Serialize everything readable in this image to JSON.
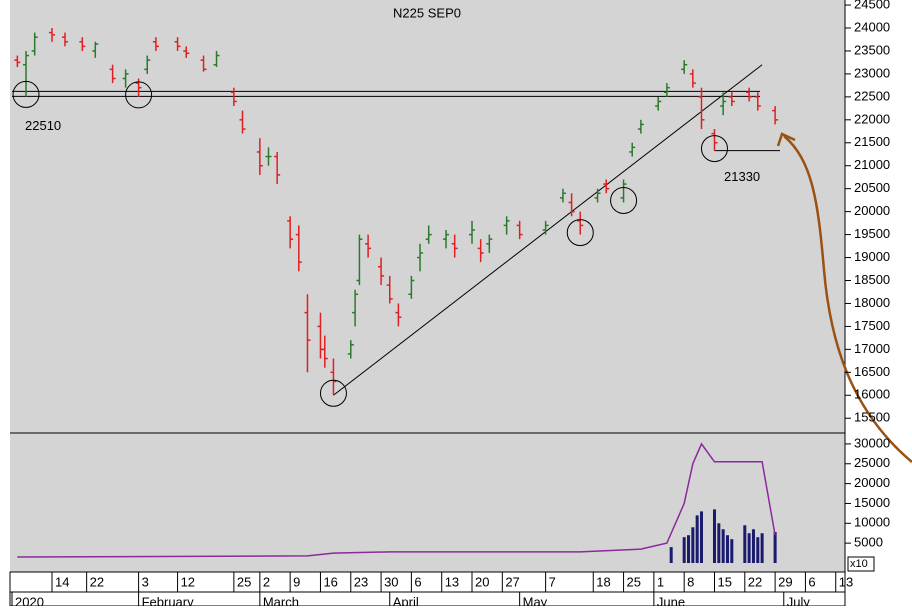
{
  "chart_data": [
    {
      "type": "ohlc",
      "title": "N225 SEP0",
      "x": [
        "2020-01-06",
        "2020-01-08",
        "2020-01-10",
        "2020-01-14",
        "2020-01-17",
        "2020-01-21",
        "2020-01-24",
        "2020-01-28",
        "2020-01-31",
        "2020-02-03",
        "2020-02-05",
        "2020-02-07",
        "2020-02-12",
        "2020-02-14",
        "2020-02-18",
        "2020-02-21",
        "2020-02-25",
        "2020-02-27",
        "2020-03-02",
        "2020-03-04",
        "2020-03-06",
        "2020-03-09",
        "2020-03-11",
        "2020-03-13",
        "2020-03-16",
        "2020-03-17",
        "2020-03-19",
        "2020-03-23",
        "2020-03-24",
        "2020-03-25",
        "2020-03-27",
        "2020-03-30",
        "2020-04-01",
        "2020-04-03",
        "2020-04-06",
        "2020-04-08",
        "2020-04-10",
        "2020-04-14",
        "2020-04-16",
        "2020-04-20",
        "2020-04-22",
        "2020-04-24",
        "2020-04-28",
        "2020-05-01",
        "2020-05-07",
        "2020-05-11",
        "2020-05-13",
        "2020-05-15",
        "2020-05-19",
        "2020-05-21",
        "2020-05-25",
        "2020-05-27",
        "2020-05-29",
        "2020-06-02",
        "2020-06-04",
        "2020-06-08",
        "2020-06-10",
        "2020-06-12",
        "2020-06-15",
        "2020-06-17",
        "2020-06-19",
        "2020-06-23",
        "2020-06-25",
        "2020-06-29"
      ],
      "open": [
        23300,
        23200,
        23500,
        23900,
        23800,
        23700,
        23500,
        23100,
        22900,
        22800,
        23100,
        23700,
        23700,
        23500,
        23300,
        23200,
        22600,
        22000,
        21300,
        21200,
        21200,
        19800,
        19500,
        17800,
        17500,
        17000,
        16500,
        16900,
        17800,
        18500,
        19300,
        18800,
        18400,
        17800,
        18200,
        19000,
        19400,
        19400,
        19300,
        19500,
        19200,
        19300,
        19700,
        19700,
        19600,
        20300,
        20200,
        19800,
        20300,
        20600,
        20300,
        21300,
        21800,
        22300,
        22600,
        23100,
        23000,
        22500,
        21700,
        22300,
        22500,
        22600,
        22500,
        22200
      ],
      "high": [
        23400,
        23500,
        23900,
        24000,
        23900,
        23800,
        23700,
        23200,
        23100,
        22900,
        23400,
        23800,
        23800,
        23600,
        23400,
        23500,
        22700,
        22200,
        21600,
        21400,
        21300,
        19900,
        19700,
        18200,
        17800,
        17300,
        16800,
        17200,
        18300,
        19500,
        19500,
        19000,
        18600,
        18000,
        18600,
        19300,
        19700,
        19600,
        19500,
        19800,
        19400,
        19500,
        19900,
        19800,
        19800,
        20500,
        20400,
        20000,
        20500,
        20700,
        20700,
        21500,
        22000,
        22500,
        22800,
        23300,
        23100,
        22700,
        21800,
        22600,
        22600,
        22700,
        22600,
        22300
      ],
      "low": [
        23150,
        22510,
        23400,
        23700,
        23600,
        23500,
        23350,
        22800,
        22700,
        22500,
        23000,
        23500,
        23500,
        23350,
        23050,
        23150,
        22300,
        21700,
        20800,
        21000,
        20600,
        19200,
        18700,
        16500,
        16800,
        16600,
        16000,
        16800,
        17500,
        18400,
        19000,
        18400,
        18000,
        17500,
        18100,
        18700,
        19300,
        19200,
        19000,
        19300,
        18900,
        19100,
        19500,
        19400,
        19500,
        20200,
        19900,
        19500,
        20200,
        20400,
        20200,
        21200,
        21700,
        22200,
        22500,
        23000,
        22700,
        21800,
        21330,
        22100,
        22300,
        22400,
        22200,
        21900
      ],
      "close": [
        23250,
        23400,
        23800,
        23850,
        23700,
        23600,
        23650,
        22900,
        23000,
        22700,
        23300,
        23600,
        23600,
        23450,
        23100,
        23400,
        22400,
        21800,
        21000,
        21200,
        20800,
        19400,
        18900,
        17200,
        17000,
        16800,
        16300,
        17100,
        18200,
        19400,
        19200,
        18600,
        18100,
        17700,
        18500,
        19100,
        19500,
        19500,
        19200,
        19600,
        19100,
        19400,
        19800,
        19500,
        19700,
        20400,
        20000,
        19700,
        20400,
        20500,
        20600,
        21400,
        21900,
        22400,
        22700,
        23200,
        22800,
        22000,
        21500,
        22400,
        22400,
        22500,
        22300,
        22000
      ],
      "up_color": "#2a7a2a",
      "down_color": "#e02020",
      "ylim": [
        15200,
        24610
      ],
      "yticks": [
        15500,
        16000,
        16500,
        17000,
        17500,
        18000,
        18500,
        19000,
        19500,
        20000,
        20500,
        21000,
        21500,
        22000,
        22500,
        23000,
        23500,
        24000,
        24500
      ],
      "levels": [
        22510,
        21330
      ],
      "trendline": {
        "x": [
          "2020-03-19",
          "2020-06-26"
        ],
        "y": [
          16000,
          23200
        ]
      },
      "xticks": [
        {
          "value": "2020-01-14",
          "label": "14"
        },
        {
          "value": "2020-01-22",
          "label": "22"
        },
        {
          "value": "2020-02-03",
          "label": "3"
        },
        {
          "value": "2020-02-12",
          "label": "12"
        },
        {
          "value": "2020-02-25",
          "label": "25"
        },
        {
          "value": "2020-03-02",
          "label": "2"
        },
        {
          "value": "2020-03-09",
          "label": "9"
        },
        {
          "value": "2020-03-16",
          "label": "16"
        },
        {
          "value": "2020-03-23",
          "label": "23"
        },
        {
          "value": "2020-03-30",
          "label": "30"
        },
        {
          "value": "2020-04-06",
          "label": "6"
        },
        {
          "value": "2020-04-13",
          "label": "13"
        },
        {
          "value": "2020-04-20",
          "label": "20"
        },
        {
          "value": "2020-04-27",
          "label": "27"
        },
        {
          "value": "2020-05-07",
          "label": "7"
        },
        {
          "value": "2020-05-18",
          "label": "18"
        },
        {
          "value": "2020-05-25",
          "label": "25"
        },
        {
          "value": "2020-06-01",
          "label": "1"
        },
        {
          "value": "2020-06-08",
          "label": "8"
        },
        {
          "value": "2020-06-15",
          "label": "15"
        },
        {
          "value": "2020-06-22",
          "label": "22"
        },
        {
          "value": "2020-06-29",
          "label": "29"
        },
        {
          "value": "2020-07-06",
          "label": "6"
        },
        {
          "value": "2020-07-13",
          "label": "13"
        }
      ],
      "months": [
        {
          "value": "2020-01-01",
          "label": "2020"
        },
        {
          "value": "2020-02-03",
          "label": "February"
        },
        {
          "value": "2020-03-02",
          "label": "March"
        },
        {
          "value": "2020-04-01",
          "label": "April"
        },
        {
          "value": "2020-05-01",
          "label": "May"
        },
        {
          "value": "2020-06-01",
          "label": "June"
        },
        {
          "value": "2020-07-01",
          "label": "July"
        }
      ]
    },
    {
      "type": "bar",
      "scale_label": "x10",
      "ylim": [
        0,
        33000
      ],
      "yticks": [
        5000,
        10000,
        15000,
        20000,
        25000,
        30000
      ],
      "series": [
        {
          "kind": "bar",
          "color": "#1a1a6e",
          "x": [
            "2020-06-05",
            "2020-06-08",
            "2020-06-09",
            "2020-06-10",
            "2020-06-11",
            "2020-06-12",
            "2020-06-15",
            "2020-06-16",
            "2020-06-17",
            "2020-06-18",
            "2020-06-19",
            "2020-06-22",
            "2020-06-23",
            "2020-06-24",
            "2020-06-25",
            "2020-06-26",
            "2020-06-29"
          ],
          "values": [
            4000,
            6500,
            7000,
            9000,
            12000,
            13000,
            13500,
            10000,
            8500,
            7000,
            6000,
            9500,
            7500,
            8500,
            6500,
            7500,
            7800
          ]
        },
        {
          "kind": "line",
          "color": "#8a2a9a",
          "x": [
            "2020-01-06",
            "2020-03-13",
            "2020-03-19",
            "2020-04-01",
            "2020-05-15",
            "2020-05-29",
            "2020-06-04",
            "2020-06-08",
            "2020-06-10",
            "2020-06-12",
            "2020-06-15",
            "2020-06-26",
            "2020-06-29"
          ],
          "values": [
            1500,
            1800,
            2500,
            2800,
            2800,
            3500,
            5000,
            15000,
            25000,
            30000,
            25500,
            25500,
            7000
          ]
        }
      ]
    }
  ]
}
